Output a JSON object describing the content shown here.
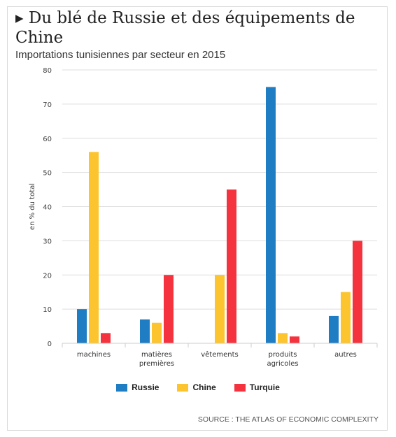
{
  "title": "▸ Du blé de Russie et des équipements de Chine",
  "subtitle": "Importations tunisiennes par secteur en 2015",
  "source": "SOURCE : THE ATLAS OF ECONOMIC COMPLEXITY",
  "colors": {
    "Russie": "#1f7dc4",
    "Chine": "#fcc52f",
    "Turquie": "#f5333f",
    "grid": "#dedede",
    "axis": "#cccccc"
  },
  "chart_data": {
    "type": "bar",
    "ylabel": "en % du total",
    "ylim": [
      0,
      80
    ],
    "yticks": [
      0,
      10,
      20,
      30,
      40,
      50,
      60,
      70,
      80
    ],
    "grid": true,
    "legend_position": "bottom",
    "categories": [
      "machines",
      "matières premières",
      "vêtements",
      "produits agricoles",
      "autres"
    ],
    "category_lines": [
      [
        "machines"
      ],
      [
        "matières",
        "premières"
      ],
      [
        "vêtements"
      ],
      [
        "produits",
        "agricoles"
      ],
      [
        "autres"
      ]
    ],
    "series": [
      {
        "name": "Russie",
        "values": [
          10,
          7,
          0,
          75,
          8
        ]
      },
      {
        "name": "Chine",
        "values": [
          56,
          6,
          20,
          3,
          15
        ]
      },
      {
        "name": "Turquie",
        "values": [
          3,
          20,
          45,
          2,
          30
        ]
      }
    ]
  }
}
